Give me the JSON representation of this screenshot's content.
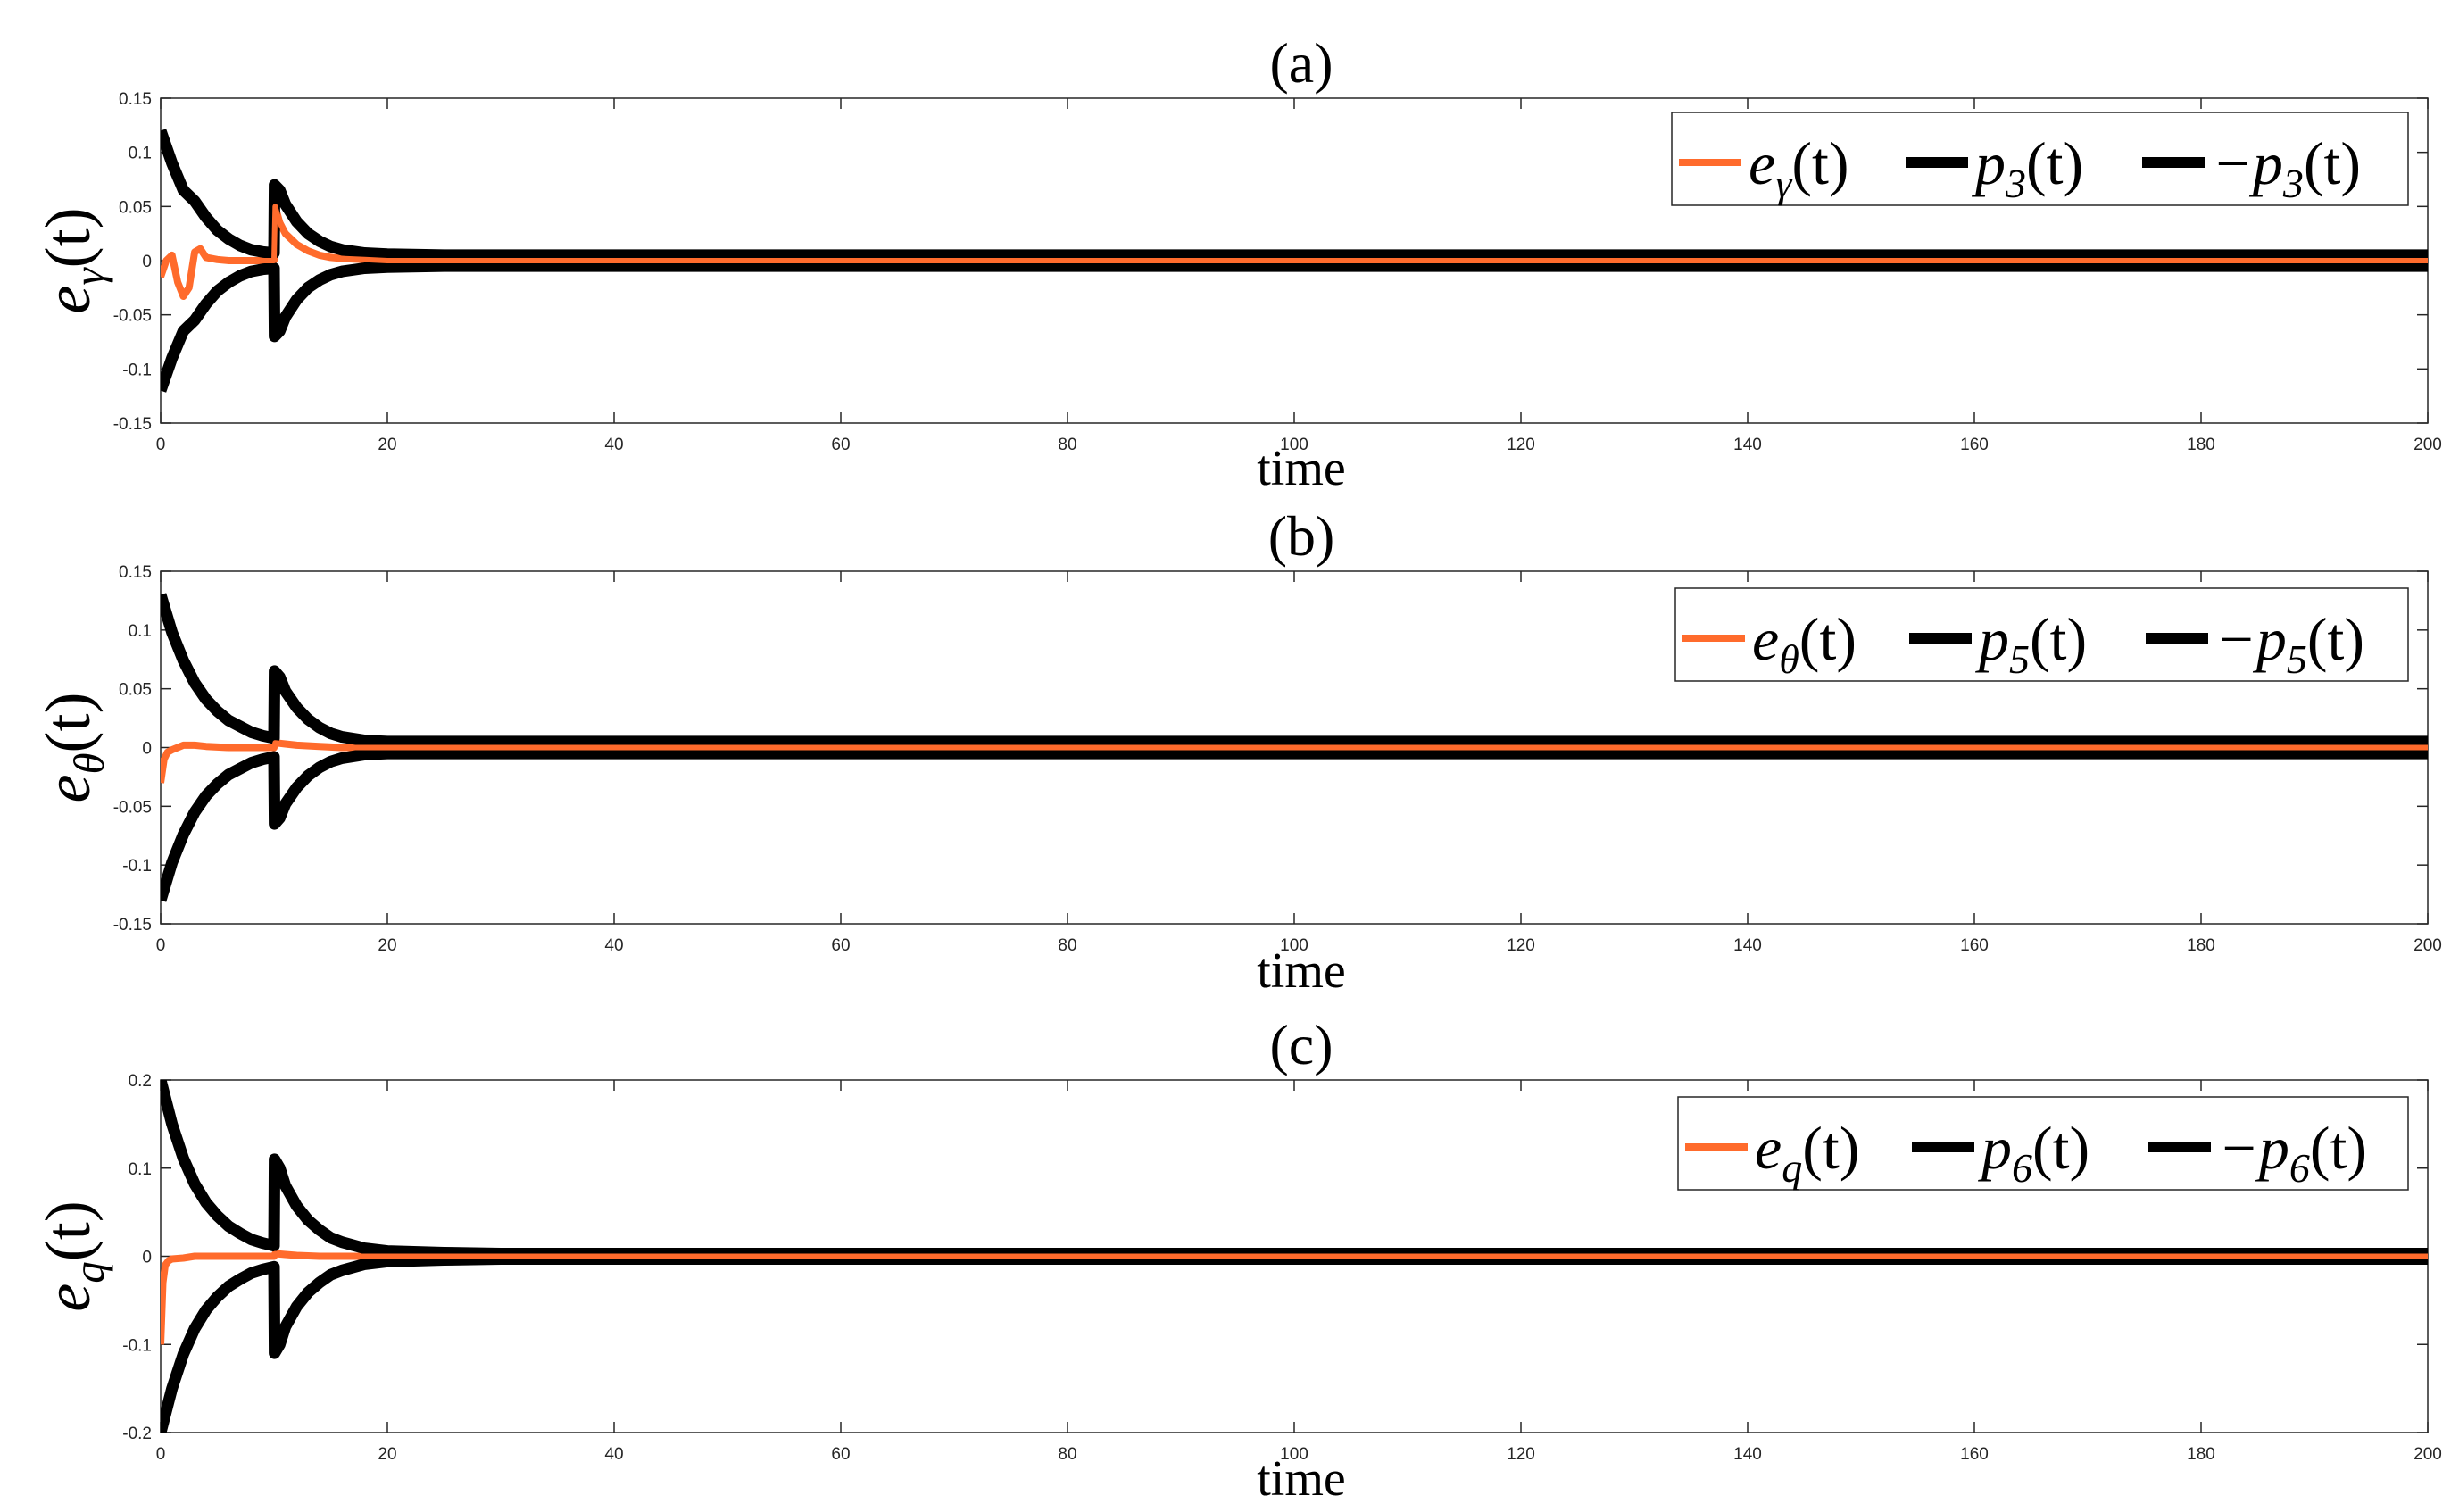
{
  "chart_data": [
    {
      "type": "line",
      "title": "(a)",
      "xlabel": "time",
      "ylabel": "eγ(t)",
      "xlim": [
        0,
        200
      ],
      "ylim": [
        -0.15,
        0.15
      ],
      "xticks": [
        "0",
        "20",
        "40",
        "60",
        "80",
        "100",
        "120",
        "140",
        "160",
        "180",
        "200"
      ],
      "yticks": [
        "-0.15",
        "-0.1",
        "-0.05",
        "0",
        "0.05",
        "0.1",
        "0.15"
      ],
      "grid": false,
      "legend_position": "top-right",
      "legend_labels": [
        "eγ(t)",
        "p3(t)",
        "−p3(t)"
      ],
      "series": [
        {
          "name": "eγ(t)",
          "color": "#ff6b2c",
          "x": [
            0,
            0.5,
            1,
            1.5,
            2,
            2.5,
            3,
            3.5,
            4,
            5,
            6,
            8,
            10,
            10.1,
            10.5,
            11,
            12,
            13,
            14,
            15,
            16,
            18,
            20,
            25,
            30,
            50,
            100,
            150,
            200
          ],
          "y": [
            -0.015,
            0.0,
            0.005,
            -0.02,
            -0.033,
            -0.025,
            0.008,
            0.011,
            0.003,
            0.001,
            0.0,
            0.0,
            0.0,
            0.05,
            0.035,
            0.025,
            0.015,
            0.009,
            0.005,
            0.003,
            0.002,
            0.001,
            0.0,
            0.0,
            0.0,
            0.0,
            0.0,
            0.0,
            0.0
          ]
        },
        {
          "name": "p3(t)",
          "color": "#000000",
          "x": [
            0,
            1,
            2,
            3,
            4,
            5,
            6,
            7,
            8,
            9,
            10,
            10.05,
            10.5,
            11,
            12,
            13,
            14,
            15,
            16,
            18,
            20,
            25,
            30,
            50,
            100,
            150,
            200
          ],
          "y": [
            0.12,
            0.09,
            0.065,
            0.055,
            0.04,
            0.028,
            0.02,
            0.014,
            0.01,
            0.008,
            0.007,
            0.07,
            0.065,
            0.052,
            0.036,
            0.025,
            0.018,
            0.013,
            0.01,
            0.007,
            0.006,
            0.005,
            0.005,
            0.005,
            0.005,
            0.005,
            0.005
          ]
        },
        {
          "name": "−p3(t)",
          "color": "#000000",
          "x": [
            0,
            1,
            2,
            3,
            4,
            5,
            6,
            7,
            8,
            9,
            10,
            10.05,
            10.5,
            11,
            12,
            13,
            14,
            15,
            16,
            18,
            20,
            25,
            30,
            50,
            100,
            150,
            200
          ],
          "y": [
            -0.12,
            -0.09,
            -0.065,
            -0.055,
            -0.04,
            -0.028,
            -0.02,
            -0.014,
            -0.01,
            -0.008,
            -0.007,
            -0.07,
            -0.065,
            -0.052,
            -0.036,
            -0.025,
            -0.018,
            -0.013,
            -0.01,
            -0.007,
            -0.006,
            -0.005,
            -0.005,
            -0.005,
            -0.005,
            -0.005,
            -0.005
          ]
        }
      ]
    },
    {
      "type": "line",
      "title": "(b)",
      "xlabel": "time",
      "ylabel": "eθ(t)",
      "xlim": [
        0,
        200
      ],
      "ylim": [
        -0.15,
        0.15
      ],
      "xticks": [
        "0",
        "20",
        "40",
        "60",
        "80",
        "100",
        "120",
        "140",
        "160",
        "180",
        "200"
      ],
      "yticks": [
        "-0.15",
        "-0.1",
        "-0.05",
        "0",
        "0.05",
        "0.1",
        "0.15"
      ],
      "grid": false,
      "legend_position": "top-right",
      "legend_labels": [
        "eθ(t)",
        "p5(t)",
        "−p5(t)"
      ],
      "series": [
        {
          "name": "eθ(t)",
          "color": "#ff6b2c",
          "x": [
            0,
            0.3,
            0.6,
            1,
            2,
            3,
            4,
            6,
            8,
            10,
            10.1,
            11,
            12,
            14,
            16,
            20,
            30,
            50,
            100,
            150,
            200
          ],
          "y": [
            -0.03,
            -0.01,
            -0.004,
            -0.002,
            0.002,
            0.002,
            0.001,
            0.0,
            0.0,
            0.0,
            0.004,
            0.003,
            0.002,
            0.001,
            0.0,
            0.0,
            0.0,
            0.0,
            0.0,
            0.0,
            0.0
          ]
        },
        {
          "name": "p5(t)",
          "color": "#000000",
          "x": [
            0,
            1,
            2,
            3,
            4,
            5,
            6,
            7,
            8,
            9,
            10,
            10.05,
            10.5,
            11,
            12,
            13,
            14,
            15,
            16,
            18,
            20,
            25,
            30,
            50,
            100,
            150,
            200
          ],
          "y": [
            0.13,
            0.098,
            0.074,
            0.055,
            0.041,
            0.031,
            0.023,
            0.018,
            0.013,
            0.01,
            0.008,
            0.065,
            0.06,
            0.048,
            0.034,
            0.024,
            0.017,
            0.012,
            0.009,
            0.006,
            0.005,
            0.005,
            0.005,
            0.005,
            0.005,
            0.005,
            0.005
          ]
        },
        {
          "name": "−p5(t)",
          "color": "#000000",
          "x": [
            0,
            1,
            2,
            3,
            4,
            5,
            6,
            7,
            8,
            9,
            10,
            10.05,
            10.5,
            11,
            12,
            13,
            14,
            15,
            16,
            18,
            20,
            25,
            30,
            50,
            100,
            150,
            200
          ],
          "y": [
            -0.13,
            -0.098,
            -0.074,
            -0.055,
            -0.041,
            -0.031,
            -0.023,
            -0.018,
            -0.013,
            -0.01,
            -0.008,
            -0.065,
            -0.06,
            -0.048,
            -0.034,
            -0.024,
            -0.017,
            -0.012,
            -0.009,
            -0.006,
            -0.005,
            -0.005,
            -0.005,
            -0.005,
            -0.005,
            -0.005,
            -0.005
          ]
        }
      ]
    },
    {
      "type": "line",
      "title": "(c)",
      "xlabel": "time",
      "ylabel": "eq(t)",
      "xlim": [
        0,
        200
      ],
      "ylim": [
        -0.2,
        0.2
      ],
      "xticks": [
        "0",
        "20",
        "40",
        "60",
        "80",
        "100",
        "120",
        "140",
        "160",
        "180",
        "200"
      ],
      "yticks": [
        "-0.2",
        "-0.1",
        "0",
        "0.1",
        "0.2"
      ],
      "grid": false,
      "legend_position": "top-right",
      "legend_labels": [
        "eq(t)",
        "p6(t)",
        "−p6(t)"
      ],
      "series": [
        {
          "name": "eq(t)",
          "color": "#ff6b2c",
          "x": [
            0,
            0.2,
            0.4,
            0.7,
            1,
            2,
            3,
            4,
            6,
            8,
            10,
            10.1,
            11,
            12,
            14,
            16,
            20,
            30,
            50,
            100,
            150,
            200
          ],
          "y": [
            -0.1,
            -0.03,
            -0.01,
            -0.005,
            -0.003,
            -0.002,
            0.0,
            0.0,
            0.0,
            0.0,
            0.0,
            0.003,
            0.002,
            0.001,
            0.0,
            0.0,
            0.0,
            0.0,
            0.0,
            0.0,
            0.0,
            0.0
          ]
        },
        {
          "name": "p6(t)",
          "color": "#000000",
          "x": [
            0,
            1,
            2,
            3,
            4,
            5,
            6,
            7,
            8,
            9,
            10,
            10.05,
            10.5,
            11,
            12,
            13,
            14,
            15,
            16,
            18,
            20,
            25,
            30,
            50,
            100,
            150,
            200
          ],
          "y": [
            0.2,
            0.15,
            0.111,
            0.082,
            0.061,
            0.046,
            0.034,
            0.026,
            0.019,
            0.015,
            0.012,
            0.11,
            0.1,
            0.08,
            0.057,
            0.041,
            0.03,
            0.021,
            0.016,
            0.009,
            0.006,
            0.004,
            0.003,
            0.003,
            0.003,
            0.003,
            0.003
          ]
        },
        {
          "name": "−p6(t)",
          "color": "#000000",
          "x": [
            0,
            1,
            2,
            3,
            4,
            5,
            6,
            7,
            8,
            9,
            10,
            10.05,
            10.5,
            11,
            12,
            13,
            14,
            15,
            16,
            18,
            20,
            25,
            30,
            50,
            100,
            150,
            200
          ],
          "y": [
            -0.2,
            -0.15,
            -0.111,
            -0.082,
            -0.061,
            -0.046,
            -0.034,
            -0.026,
            -0.019,
            -0.015,
            -0.012,
            -0.11,
            -0.1,
            -0.08,
            -0.057,
            -0.041,
            -0.03,
            -0.021,
            -0.016,
            -0.009,
            -0.006,
            -0.004,
            -0.003,
            -0.003,
            -0.003,
            -0.003,
            -0.003
          ]
        }
      ]
    }
  ]
}
